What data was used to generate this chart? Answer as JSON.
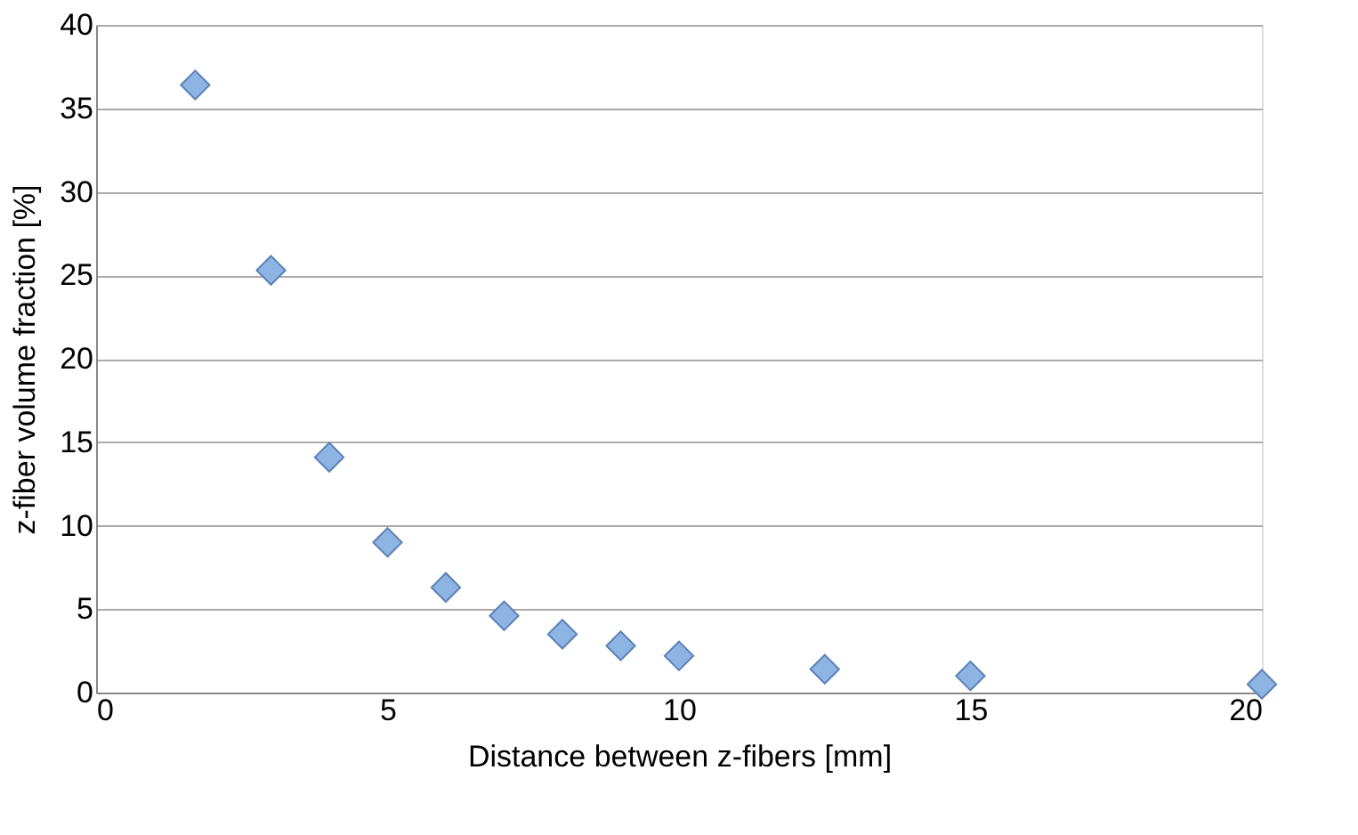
{
  "chart_data": {
    "type": "scatter",
    "xlabel": "Distance between z-fibers [mm]",
    "ylabel": "z-fiber volume fraction [%]",
    "x": [
      1.7,
      3,
      4,
      5,
      6,
      7,
      8,
      9,
      10,
      12.5,
      15,
      20
    ],
    "series": [
      {
        "color": "#8db4e2",
        "values": [
          36.4,
          25.3,
          14.1,
          9.0,
          6.3,
          4.6,
          3.5,
          2.8,
          2.2,
          1.4,
          1.0,
          0.5
        ]
      }
    ],
    "xlim": [
      0,
      20
    ],
    "xticks": [
      0,
      5,
      10,
      15,
      20
    ],
    "ylim": [
      0,
      40
    ],
    "yticks": [
      0,
      5,
      10,
      15,
      20,
      25,
      30,
      35,
      40
    ],
    "grid": "y",
    "marker": "diamond"
  }
}
